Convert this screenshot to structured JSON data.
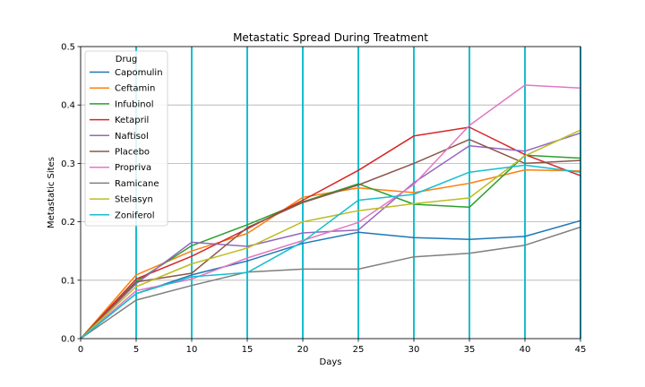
{
  "chart_data": {
    "type": "line",
    "title": "Metastatic Spread During Treatment",
    "xlabel": "Days",
    "ylabel": "Metastatic Sites",
    "xlim": [
      0,
      45
    ],
    "ylim": [
      0,
      0.5
    ],
    "x": [
      0,
      5,
      10,
      15,
      20,
      25,
      30,
      35,
      40,
      45
    ],
    "xticks": [
      "0",
      "5",
      "10",
      "15",
      "20",
      "25",
      "30",
      "35",
      "40",
      "45"
    ],
    "yticks": [
      "0.0",
      "0.1",
      "0.2",
      "0.3",
      "0.4",
      "0.5"
    ],
    "grid": true,
    "legend_title": "Drug",
    "legend_position": "upper-left",
    "series": [
      {
        "name": "Capomulin",
        "color": "#1f77b4",
        "values": [
          0,
          0.077,
          0.109,
          0.133,
          0.163,
          0.182,
          0.173,
          0.17,
          0.175,
          0.202
        ]
      },
      {
        "name": "Ceftamin",
        "color": "#ff7f0e",
        "values": [
          0,
          0.109,
          0.15,
          0.18,
          0.242,
          0.258,
          0.25,
          0.266,
          0.289,
          0.287
        ]
      },
      {
        "name": "Infubinol",
        "color": "#2ca02c",
        "values": [
          0,
          0.098,
          0.159,
          0.195,
          0.234,
          0.265,
          0.23,
          0.225,
          0.314,
          0.309
        ]
      },
      {
        "name": "Ketapril",
        "color": "#d62728",
        "values": [
          0,
          0.102,
          0.141,
          0.188,
          0.237,
          0.288,
          0.347,
          0.362,
          0.315,
          0.279
        ]
      },
      {
        "name": "Naftisol",
        "color": "#9467bd",
        "values": [
          0,
          0.094,
          0.165,
          0.158,
          0.181,
          0.186,
          0.267,
          0.33,
          0.321,
          0.352
        ]
      },
      {
        "name": "Placebo",
        "color": "#8c564b",
        "values": [
          0,
          0.097,
          0.112,
          0.19,
          0.233,
          0.263,
          0.3,
          0.341,
          0.3,
          0.305
        ]
      },
      {
        "name": "Propriva",
        "color": "#e377c2",
        "values": [
          0,
          0.082,
          0.102,
          0.138,
          0.168,
          0.199,
          0.264,
          0.365,
          0.434,
          0.429
        ]
      },
      {
        "name": "Ramicane",
        "color": "#7f7f7f",
        "values": [
          0,
          0.066,
          0.091,
          0.114,
          0.119,
          0.119,
          0.14,
          0.146,
          0.16,
          0.191
        ]
      },
      {
        "name": "Stelasyn",
        "color": "#bcbd22",
        "values": [
          0,
          0.089,
          0.128,
          0.155,
          0.2,
          0.219,
          0.231,
          0.241,
          0.313,
          0.357
        ]
      },
      {
        "name": "Zoniferol",
        "color": "#17becf",
        "values": [
          0,
          0.077,
          0.106,
          0.113,
          0.166,
          0.237,
          0.247,
          0.285,
          0.297,
          0.285
        ]
      }
    ]
  }
}
